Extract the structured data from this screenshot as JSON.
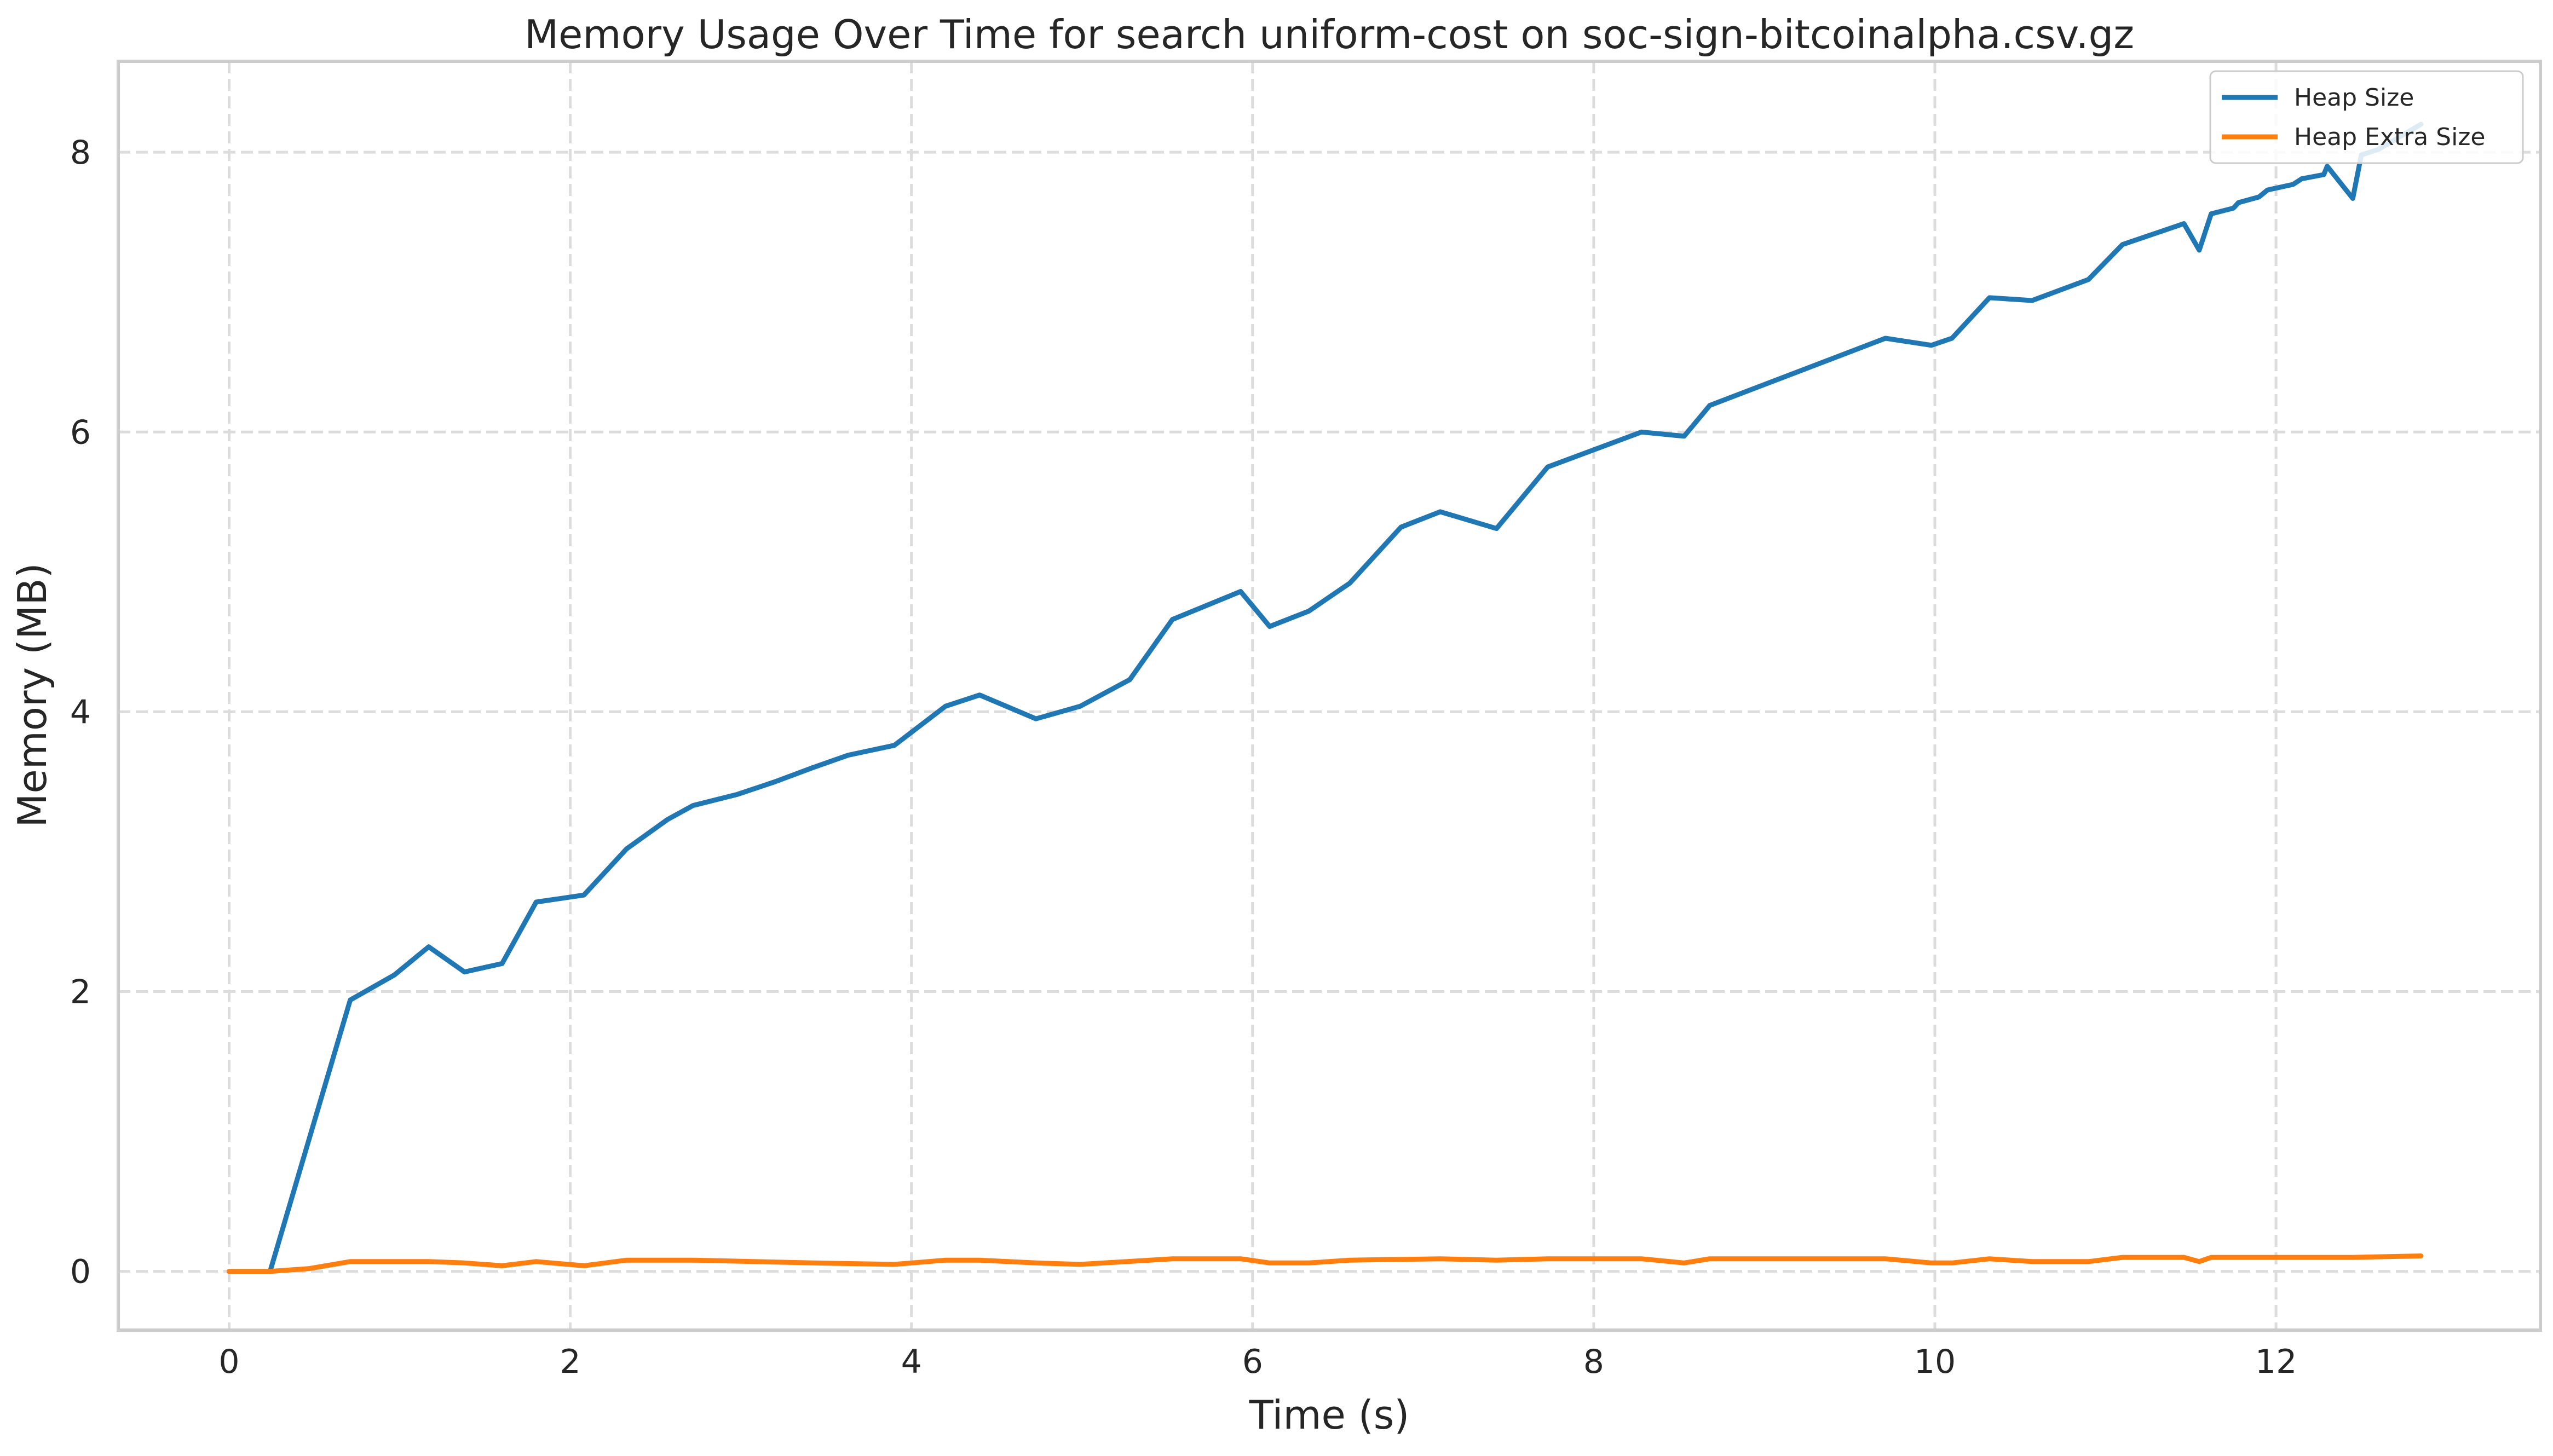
{
  "chart_data": {
    "type": "line",
    "title": "Memory Usage Over Time for search uniform-cost on soc-sign-bitcoinalpha.csv.gz",
    "xlabel": "Time (s)",
    "ylabel": "Memory (MB)",
    "xlim": [
      -0.65,
      13.55
    ],
    "ylim": [
      -0.42,
      8.65
    ],
    "xticks": [
      0,
      2,
      4,
      6,
      8,
      10,
      12
    ],
    "yticks": [
      0,
      2,
      4,
      6,
      8
    ],
    "grid": true,
    "legend": "top-right",
    "series": [
      {
        "name": "Heap Size",
        "color": "#1f77b4",
        "points": [
          [
            0.0,
            0.0
          ],
          [
            0.24,
            0.0
          ],
          [
            0.47,
            0.95
          ],
          [
            0.71,
            1.94
          ],
          [
            0.97,
            2.12
          ],
          [
            1.17,
            2.32
          ],
          [
            1.38,
            2.14
          ],
          [
            1.6,
            2.2
          ],
          [
            1.8,
            2.64
          ],
          [
            2.08,
            2.69
          ],
          [
            2.33,
            3.02
          ],
          [
            2.57,
            3.23
          ],
          [
            2.72,
            3.33
          ],
          [
            2.98,
            3.41
          ],
          [
            3.2,
            3.5
          ],
          [
            3.42,
            3.6
          ],
          [
            3.63,
            3.69
          ],
          [
            3.9,
            3.76
          ],
          [
            4.2,
            4.04
          ],
          [
            4.4,
            4.12
          ],
          [
            4.73,
            3.95
          ],
          [
            4.99,
            4.04
          ],
          [
            5.28,
            4.23
          ],
          [
            5.53,
            4.66
          ],
          [
            5.93,
            4.86
          ],
          [
            6.1,
            4.61
          ],
          [
            6.33,
            4.72
          ],
          [
            6.57,
            4.92
          ],
          [
            6.87,
            5.32
          ],
          [
            7.1,
            5.43
          ],
          [
            7.43,
            5.31
          ],
          [
            7.73,
            5.75
          ],
          [
            8.28,
            6.0
          ],
          [
            8.53,
            5.97
          ],
          [
            8.68,
            6.19
          ],
          [
            9.71,
            6.67
          ],
          [
            9.98,
            6.62
          ],
          [
            10.1,
            6.67
          ],
          [
            10.32,
            6.96
          ],
          [
            10.57,
            6.94
          ],
          [
            10.9,
            7.09
          ],
          [
            11.1,
            7.34
          ],
          [
            11.46,
            7.49
          ],
          [
            11.55,
            7.3
          ],
          [
            11.62,
            7.56
          ],
          [
            11.75,
            7.6
          ],
          [
            11.78,
            7.64
          ],
          [
            11.9,
            7.68
          ],
          [
            11.95,
            7.73
          ],
          [
            12.1,
            7.77
          ],
          [
            12.15,
            7.81
          ],
          [
            12.28,
            7.84
          ],
          [
            12.3,
            7.9
          ],
          [
            12.45,
            7.67
          ],
          [
            12.5,
            7.98
          ],
          [
            12.6,
            8.02
          ],
          [
            12.85,
            8.2
          ]
        ]
      },
      {
        "name": "Heap Extra Size",
        "color": "#ff7f0e",
        "points": [
          [
            0.0,
            0.0
          ],
          [
            0.24,
            0.0
          ],
          [
            0.47,
            0.02
          ],
          [
            0.71,
            0.07
          ],
          [
            0.97,
            0.07
          ],
          [
            1.17,
            0.07
          ],
          [
            1.38,
            0.06
          ],
          [
            1.6,
            0.04
          ],
          [
            1.8,
            0.07
          ],
          [
            2.08,
            0.04
          ],
          [
            2.33,
            0.08
          ],
          [
            2.72,
            0.08
          ],
          [
            3.42,
            0.06
          ],
          [
            3.9,
            0.05
          ],
          [
            4.2,
            0.08
          ],
          [
            4.4,
            0.08
          ],
          [
            4.73,
            0.06
          ],
          [
            4.99,
            0.05
          ],
          [
            5.53,
            0.09
          ],
          [
            5.93,
            0.09
          ],
          [
            6.1,
            0.06
          ],
          [
            6.33,
            0.06
          ],
          [
            6.57,
            0.08
          ],
          [
            7.1,
            0.09
          ],
          [
            7.43,
            0.08
          ],
          [
            7.73,
            0.09
          ],
          [
            8.28,
            0.09
          ],
          [
            8.53,
            0.06
          ],
          [
            8.68,
            0.09
          ],
          [
            9.71,
            0.09
          ],
          [
            9.98,
            0.06
          ],
          [
            10.1,
            0.06
          ],
          [
            10.32,
            0.09
          ],
          [
            10.57,
            0.07
          ],
          [
            10.9,
            0.07
          ],
          [
            11.1,
            0.1
          ],
          [
            11.46,
            0.1
          ],
          [
            11.55,
            0.07
          ],
          [
            11.62,
            0.1
          ],
          [
            11.78,
            0.1
          ],
          [
            12.15,
            0.1
          ],
          [
            12.3,
            0.1
          ],
          [
            12.45,
            0.1
          ],
          [
            12.85,
            0.11
          ]
        ]
      }
    ]
  }
}
